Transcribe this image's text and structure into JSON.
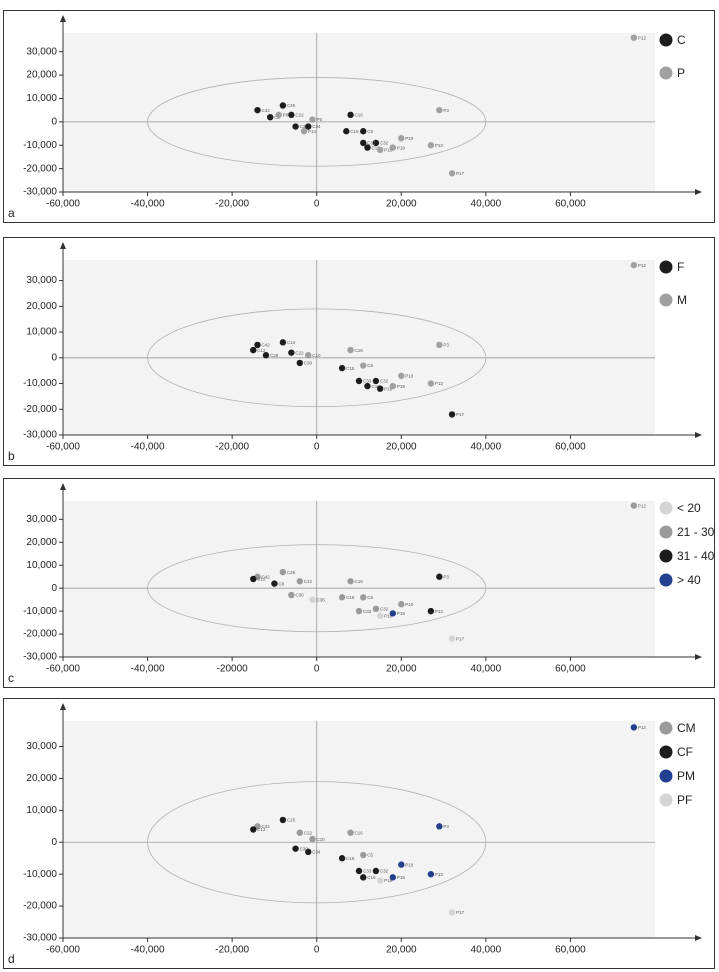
{
  "chart_data": [
    {
      "type": "scatter",
      "label": "a",
      "xlim": [
        -60000,
        80000
      ],
      "ylim": [
        -30000,
        38000
      ],
      "xticks": [
        {
          "value": -60000,
          "label": "-60,000"
        },
        {
          "value": -40000,
          "label": "-40,000"
        },
        {
          "value": -20000,
          "label": "-20,000"
        },
        0,
        {
          "value": 20000,
          "label": "20,000"
        },
        {
          "value": 40000,
          "label": "40,000"
        },
        {
          "value": 60000,
          "label": "60,000"
        }
      ],
      "yticks": [
        {
          "value": -30000,
          "label": "-30,000"
        },
        {
          "value": -20000,
          "label": "-20,000"
        },
        {
          "value": -10000,
          "label": "-10,000"
        },
        0,
        {
          "value": 10000,
          "label": "10,000"
        },
        {
          "value": 20000,
          "label": "20,000"
        },
        {
          "value": 30000,
          "label": "30,000"
        }
      ],
      "ellipse": {
        "cx": 0,
        "cy": 0,
        "rx": 40000,
        "ry": 19000
      },
      "series": [
        {
          "name": "C",
          "color": "#1c1c1c",
          "x": [
            -14000,
            -8000,
            -6000,
            -5000,
            -2000,
            8000,
            7000,
            11000,
            14000,
            11000,
            12000,
            -11000
          ],
          "y": [
            5000,
            7000,
            3000,
            -2000,
            -2000,
            3000,
            -4000,
            -4000,
            -9000,
            -9000,
            -11000,
            2000
          ],
          "labels": [
            "C42",
            "C25",
            "C22",
            "C30",
            "C34",
            "C16",
            "C15",
            "C5",
            "C32",
            "C33",
            "C19",
            "C2"
          ]
        },
        {
          "name": "P",
          "color": "#a0a0a0",
          "x": [
            75000,
            29000,
            20000,
            27000,
            15000,
            32000,
            18000,
            -3000,
            -9000,
            -1000
          ],
          "y": [
            36000,
            5000,
            -7000,
            -10000,
            -12000,
            -22000,
            -11000,
            -4000,
            3000,
            1000
          ],
          "labels": [
            "P12",
            "P3",
            "P10",
            "P13",
            "P16",
            "P17",
            "P19",
            "P14",
            "P8",
            "P5"
          ]
        }
      ]
    },
    {
      "type": "scatter",
      "label": "b",
      "xlim": [
        -60000,
        80000
      ],
      "ylim": [
        -30000,
        38000
      ],
      "xticks": [
        {
          "value": -60000,
          "label": "-60,000"
        },
        {
          "value": -40000,
          "label": "-40,000"
        },
        {
          "value": -20000,
          "label": "-20,000"
        },
        0,
        {
          "value": 20000,
          "label": "20,000"
        },
        {
          "value": 40000,
          "label": "40,000"
        },
        {
          "value": 60000,
          "label": "60,000"
        }
      ],
      "yticks": [
        {
          "value": -30000,
          "label": "-30,000"
        },
        {
          "value": -20000,
          "label": "-20,000"
        },
        {
          "value": -10000,
          "label": "-10,000"
        },
        0,
        {
          "value": 10000,
          "label": "10,000"
        },
        {
          "value": 20000,
          "label": "20,000"
        },
        {
          "value": 30000,
          "label": "30,000"
        }
      ],
      "ellipse": {
        "cx": 0,
        "cy": 0,
        "rx": 40000,
        "ry": 19000
      },
      "series": [
        {
          "name": "F",
          "color": "#1c1c1c",
          "x": [
            -14000,
            -8000,
            -6000,
            -4000,
            6000,
            10000,
            12000,
            14000,
            32000,
            -15000,
            -12000,
            15000
          ],
          "y": [
            5000,
            6000,
            2000,
            -2000,
            -4000,
            -9000,
            -11000,
            -9000,
            -22000,
            3000,
            1000,
            -12000
          ],
          "labels": [
            "C42",
            "C13",
            "C22",
            "C30",
            "C15",
            "C33",
            "C19",
            "C32",
            "P17",
            "C12",
            "C28",
            "P16"
          ]
        },
        {
          "name": "M",
          "color": "#a0a0a0",
          "x": [
            75000,
            8000,
            11000,
            29000,
            20000,
            27000,
            18000,
            -2000
          ],
          "y": [
            36000,
            3000,
            -3000,
            5000,
            -7000,
            -10000,
            -11000,
            1000
          ],
          "labels": [
            "P12",
            "C16",
            "C5",
            "P3",
            "P10",
            "P13",
            "P19",
            "C10"
          ]
        }
      ]
    },
    {
      "type": "scatter",
      "label": "c",
      "xlim": [
        -60000,
        80000
      ],
      "ylim": [
        -30000,
        38000
      ],
      "xticks": [
        {
          "value": -60000,
          "label": "-60,000"
        },
        {
          "value": -40000,
          "label": "-40,000"
        },
        {
          "value": -20000,
          "label": "-20000"
        },
        0,
        {
          "value": 20000,
          "label": "20,000"
        },
        {
          "value": 40000,
          "label": "40,000"
        },
        {
          "value": 60000,
          "label": "60,000"
        }
      ],
      "yticks": [
        {
          "value": -30000,
          "label": "-30,000"
        },
        {
          "value": -20000,
          "label": "-20,000"
        },
        {
          "value": -10000,
          "label": "-10,000"
        },
        0,
        {
          "value": 10000,
          "label": "10,000"
        },
        {
          "value": 20000,
          "label": "20,000"
        },
        {
          "value": 30000,
          "label": "30,000"
        }
      ],
      "ellipse": {
        "cx": 0,
        "cy": 0,
        "rx": 40000,
        "ry": 19000
      },
      "series": [
        {
          "name": "< 20",
          "color": "#d4d4d4",
          "x": [
            32000,
            15000,
            -1000
          ],
          "y": [
            -22000,
            -12000,
            -5000
          ],
          "labels": [
            "P17",
            "P16",
            "C36"
          ]
        },
        {
          "name": "21 - 30",
          "color": "#9a9a9a",
          "x": [
            75000,
            8000,
            6000,
            11000,
            14000,
            10000,
            20000,
            -14000,
            -8000,
            -4000,
            -6000
          ],
          "y": [
            36000,
            3000,
            -4000,
            -4000,
            -9000,
            -10000,
            -7000,
            5000,
            7000,
            3000,
            -3000
          ],
          "labels": [
            "P12",
            "C16",
            "C15",
            "C5",
            "C32",
            "C33",
            "P10",
            "C42",
            "C25",
            "C22",
            "C30"
          ]
        },
        {
          "name": "31 - 40",
          "color": "#1c1c1c",
          "x": [
            29000,
            27000,
            -15000,
            -10000
          ],
          "y": [
            5000,
            -10000,
            4000,
            2000
          ],
          "labels": [
            "P3",
            "P13",
            "C12",
            "C8"
          ]
        },
        {
          "name": "> 40",
          "color": "#23408e",
          "x": [
            18000
          ],
          "y": [
            -11000
          ],
          "labels": [
            "P19"
          ]
        }
      ]
    },
    {
      "type": "scatter",
      "label": "d",
      "xlim": [
        -60000,
        80000
      ],
      "ylim": [
        -30000,
        38000
      ],
      "xticks": [
        {
          "value": -60000,
          "label": "-60,000"
        },
        {
          "value": -40000,
          "label": "-40,000"
        },
        {
          "value": -20000,
          "label": "-20,000"
        },
        0,
        {
          "value": 20000,
          "label": "20,000"
        },
        {
          "value": 40000,
          "label": "40,000"
        },
        {
          "value": 60000,
          "label": "60,000"
        }
      ],
      "yticks": [
        {
          "value": -30000,
          "label": "-30,000"
        },
        {
          "value": -20000,
          "label": "-20,000"
        },
        {
          "value": -10000,
          "label": "-10,000"
        },
        0,
        {
          "value": 10000,
          "label": "10,000"
        },
        {
          "value": 20000,
          "label": "20,000"
        },
        {
          "value": 30000,
          "label": "30,000"
        }
      ],
      "ellipse": {
        "cx": 0,
        "cy": 0,
        "rx": 40000,
        "ry": 19000
      },
      "series": [
        {
          "name": "CM",
          "color": "#9a9a9a",
          "x": [
            8000,
            11000,
            -14000,
            -4000,
            -1000
          ],
          "y": [
            3000,
            -4000,
            5000,
            3000,
            1000
          ],
          "labels": [
            "C16",
            "C5",
            "C42",
            "C22",
            "C10"
          ]
        },
        {
          "name": "CF",
          "color": "#1c1c1c",
          "x": [
            6000,
            10000,
            11000,
            14000,
            -8000,
            -15000,
            -2000,
            -5000
          ],
          "y": [
            -5000,
            -9000,
            -11000,
            -9000,
            7000,
            4000,
            -3000,
            -2000
          ],
          "labels": [
            "C15",
            "C33",
            "C19",
            "C32",
            "C25",
            "C12",
            "C34",
            "C30"
          ]
        },
        {
          "name": "PM",
          "color": "#23408e",
          "x": [
            75000,
            29000,
            20000,
            27000,
            18000
          ],
          "y": [
            36000,
            5000,
            -7000,
            -10000,
            -11000
          ],
          "labels": [
            "P12",
            "P3",
            "P10",
            "P13",
            "P15"
          ]
        },
        {
          "name": "PF",
          "color": "#d4d4d4",
          "x": [
            32000,
            15000
          ],
          "y": [
            -22000,
            -12000
          ],
          "labels": [
            "P17",
            "P16"
          ]
        }
      ]
    }
  ]
}
